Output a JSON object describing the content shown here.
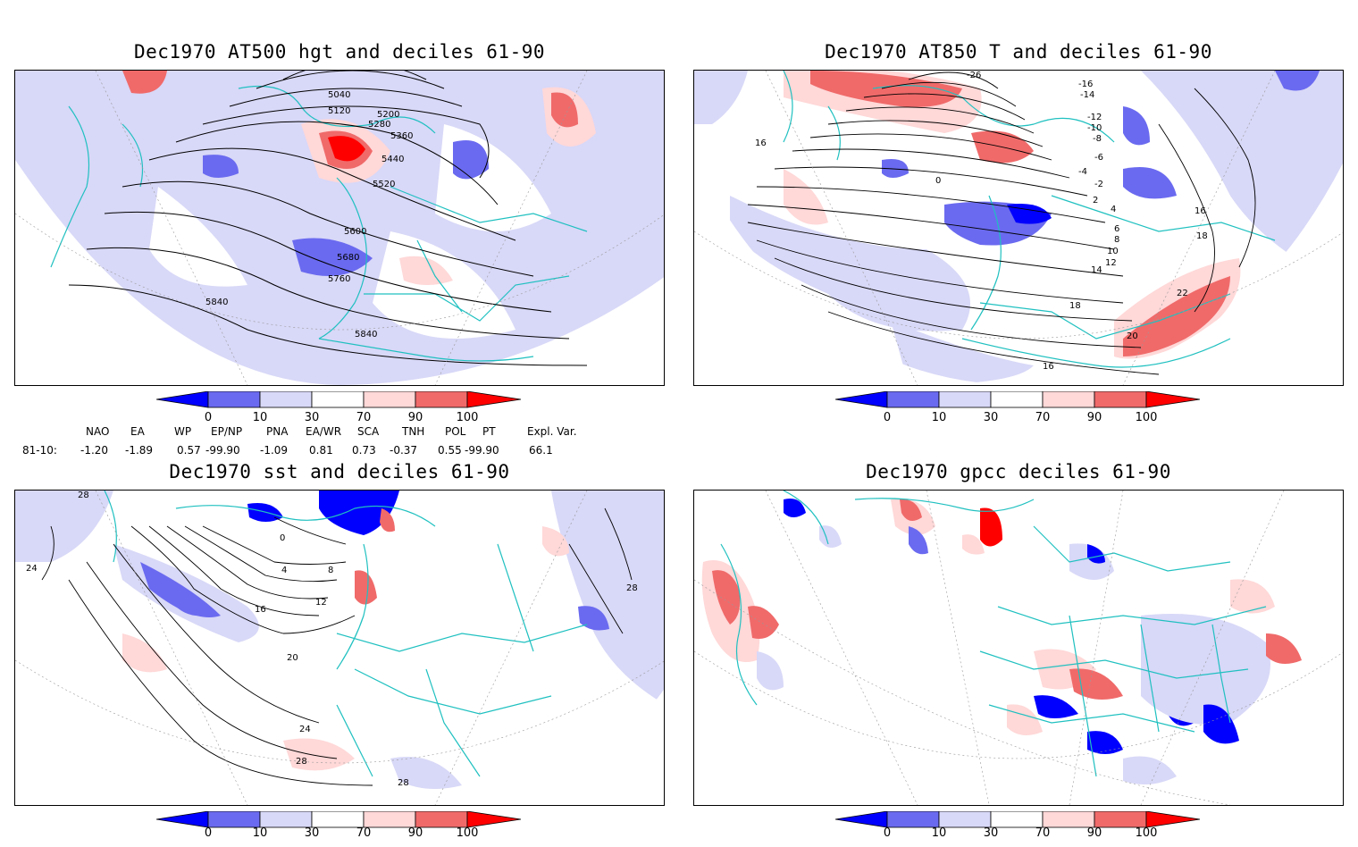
{
  "panels": [
    {
      "title": "Dec1970 AT500 hgt and deciles 61-90",
      "contour_labels": [
        "5040",
        "5120",
        "5200",
        "5280",
        "5360",
        "5440",
        "5520",
        "5600",
        "5680",
        "5760",
        "5840",
        "5840"
      ]
    },
    {
      "title": "Dec1970 AT850 T and deciles 61-90",
      "contour_labels": [
        "-26",
        "-16",
        "-14",
        "-12",
        "-10",
        "-8",
        "-6",
        "-4",
        "-2",
        "0",
        "2",
        "4",
        "6",
        "8",
        "10",
        "12",
        "14",
        "16",
        "18",
        "20",
        "22",
        "16",
        "18",
        "16"
      ]
    },
    {
      "title": "Dec1970 sst and deciles 61-90",
      "contour_labels": [
        "24",
        "28",
        "0",
        "4",
        "8",
        "12",
        "16",
        "20",
        "24",
        "28",
        "28",
        "28"
      ]
    },
    {
      "title": "Dec1970 gpcc deciles 61-90",
      "contour_labels": []
    }
  ],
  "colorbar": {
    "ticks": [
      "0",
      "10",
      "30",
      "70",
      "90",
      "100"
    ],
    "colors": [
      "#0000ff",
      "#6a6af0",
      "#d8d8f8",
      "#ffffff",
      "#ffd8d8",
      "#f06a6a",
      "#ff0000"
    ]
  },
  "indices": {
    "headers": [
      "NAO",
      "EA",
      "WP",
      "EP/NP",
      "PNA",
      "EA/WR",
      "SCA",
      "TNH",
      "POL",
      "PT",
      "Expl. Var."
    ],
    "row_label": "81-10:",
    "values": [
      "-1.20",
      "-1.89",
      "0.57",
      "-99.90",
      "-1.09",
      "0.81",
      "0.73",
      "-0.37",
      "0.55",
      "-99.90",
      "66.1"
    ]
  },
  "colors": {
    "coast": "#20c0c0",
    "lightblue": "#d8d8f8",
    "midblue": "#6a6af0",
    "blue": "#0000ff",
    "lightred": "#ffd8d8",
    "midred": "#f06a6a",
    "red": "#ff0000"
  }
}
